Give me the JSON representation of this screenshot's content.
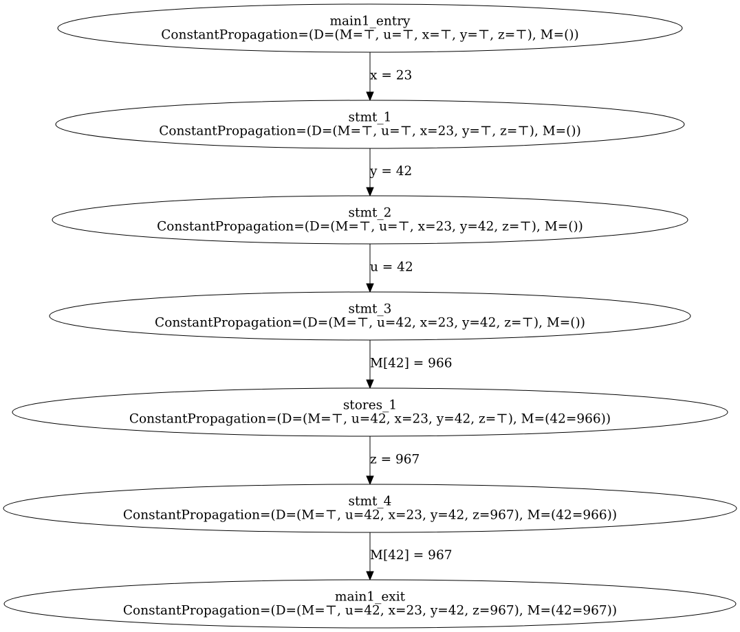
{
  "graph": {
    "nodes": [
      {
        "id": "main1_entry",
        "title": "main1_entry",
        "label": "ConstantPropagation=(D=(M=⊤, u=⊤, x=⊤, y=⊤, z=⊤), M=())"
      },
      {
        "id": "stmt_1",
        "title": "stmt_1",
        "label": "ConstantPropagation=(D=(M=⊤, u=⊤, x=23, y=⊤, z=⊤), M=())"
      },
      {
        "id": "stmt_2",
        "title": "stmt_2",
        "label": "ConstantPropagation=(D=(M=⊤, u=⊤, x=23, y=42, z=⊤), M=())"
      },
      {
        "id": "stmt_3",
        "title": "stmt_3",
        "label": "ConstantPropagation=(D=(M=⊤, u=42, x=23, y=42, z=⊤), M=())"
      },
      {
        "id": "stores_1",
        "title": "stores_1",
        "label": "ConstantPropagation=(D=(M=⊤, u=42, x=23, y=42, z=⊤), M=(42=966))"
      },
      {
        "id": "stmt_4",
        "title": "stmt_4",
        "label": "ConstantPropagation=(D=(M=⊤, u=42, x=23, y=42, z=967), M=(42=966))"
      },
      {
        "id": "main1_exit",
        "title": "main1_exit",
        "label": "ConstantPropagation=(D=(M=⊤, u=42, x=23, y=42, z=967), M=(42=967))"
      }
    ],
    "edges": [
      {
        "from": "main1_entry",
        "to": "stmt_1",
        "label": "x = 23"
      },
      {
        "from": "stmt_1",
        "to": "stmt_2",
        "label": "y = 42"
      },
      {
        "from": "stmt_2",
        "to": "stmt_3",
        "label": "u = 42"
      },
      {
        "from": "stmt_3",
        "to": "stores_1",
        "label": "M[42] = 966"
      },
      {
        "from": "stores_1",
        "to": "stmt_4",
        "label": "z = 967"
      },
      {
        "from": "stmt_4",
        "to": "main1_exit",
        "label": "M[42] = 967"
      }
    ]
  }
}
